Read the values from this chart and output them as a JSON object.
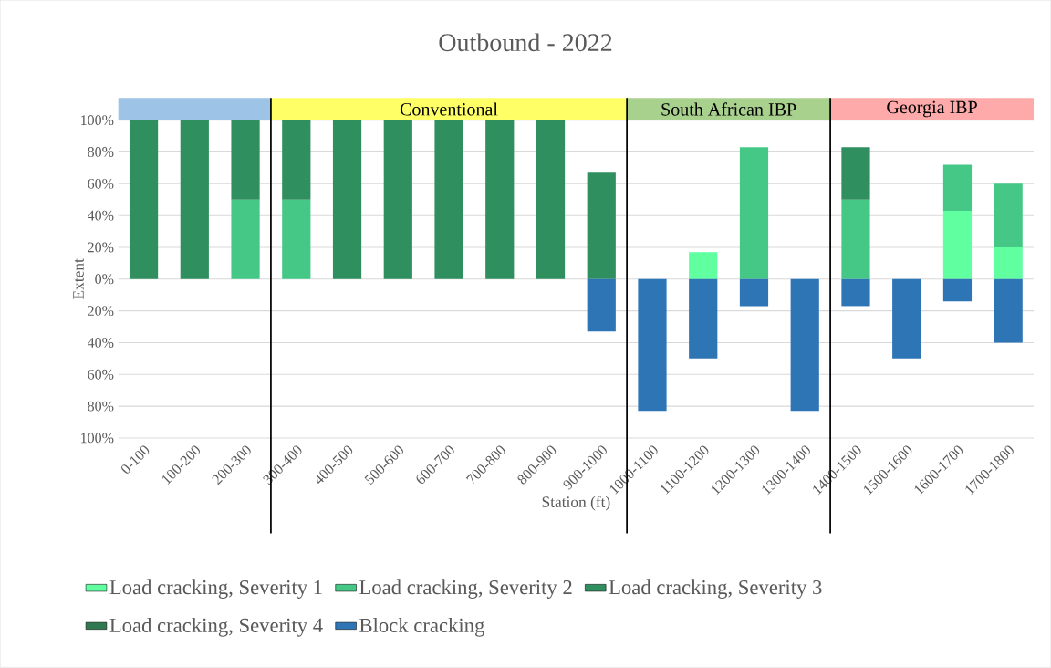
{
  "chart_data": {
    "type": "bar",
    "stacked": true,
    "title": "Outbound - 2022",
    "xlabel": "Station (ft)",
    "ylabel": "Extent",
    "categories": [
      "0-100",
      "100-200",
      "200-300",
      "300-400",
      "400-500",
      "500-600",
      "600-700",
      "700-800",
      "800-900",
      "900-1000",
      "1000-1100",
      "1100-1200",
      "1200-1300",
      "1300-1400",
      "1400-1500",
      "1500-1600",
      "1600-1700",
      "1700-1800"
    ],
    "series": [
      {
        "name": "Load cracking, Severity 1",
        "color": "#60ffa0",
        "values": [
          null,
          null,
          null,
          null,
          null,
          null,
          null,
          null,
          null,
          null,
          null,
          17,
          null,
          null,
          null,
          null,
          43,
          20
        ]
      },
      {
        "name": "Load cracking, Severity 2",
        "color": "#45c886",
        "values": [
          null,
          null,
          50,
          50,
          null,
          null,
          null,
          null,
          null,
          null,
          null,
          null,
          83,
          null,
          50,
          null,
          29,
          40
        ]
      },
      {
        "name": "Load cracking, Severity 3",
        "color": "#2f8f5e",
        "values": [
          100,
          100,
          50,
          50,
          100,
          100,
          100,
          100,
          100,
          67,
          null,
          null,
          null,
          null,
          33,
          null,
          null,
          null
        ]
      },
      {
        "name": "Load cracking, Severity 4",
        "color": "#307850",
        "values": [
          null,
          null,
          null,
          null,
          null,
          null,
          null,
          null,
          null,
          null,
          null,
          null,
          null,
          null,
          null,
          null,
          null,
          null
        ]
      },
      {
        "name": "Block cracking",
        "color": "#2e75b6",
        "values": [
          null,
          null,
          null,
          null,
          null,
          null,
          null,
          null,
          null,
          -33,
          -83,
          -50,
          -17,
          -83,
          -17,
          -50,
          -14,
          -40
        ]
      }
    ],
    "ylim": [
      -100,
      100
    ],
    "yticks": [
      {
        "value": -100,
        "label": "100%"
      },
      {
        "value": -80,
        "label": "80%"
      },
      {
        "value": -60,
        "label": "60%"
      },
      {
        "value": -40,
        "label": "40%"
      },
      {
        "value": -20,
        "label": "20%"
      },
      {
        "value": 0,
        "label": "0%"
      },
      {
        "value": 20,
        "label": "20%"
      },
      {
        "value": 40,
        "label": "40%"
      },
      {
        "value": 60,
        "label": "60%"
      },
      {
        "value": 80,
        "label": "80%"
      },
      {
        "value": 100,
        "label": "100%"
      }
    ],
    "grid": "y",
    "legend": "bottom",
    "annotations": [
      "Conventional",
      "South African IBP",
      "Georgia IBP"
    ]
  }
}
